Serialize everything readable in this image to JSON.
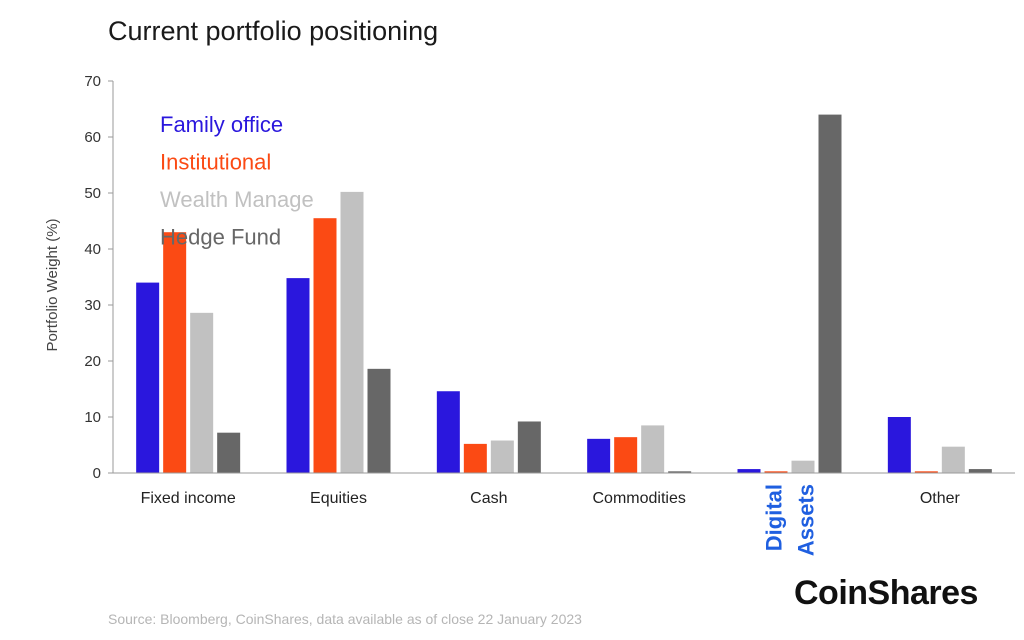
{
  "chart_data": {
    "type": "bar",
    "title": "Current portfolio positioning",
    "ylabel": "Portfolio Weight (%)",
    "xlabel": "",
    "ylim": [
      0,
      70
    ],
    "yticks": [
      0,
      10,
      20,
      30,
      40,
      50,
      60,
      70
    ],
    "categories": [
      "Fixed income",
      "Equities",
      "Cash",
      "Commodities",
      "Digital Assets",
      "Other"
    ],
    "highlight_category": "Digital Assets",
    "highlight_color": "#1f5fe0",
    "legend_position": "top-left",
    "series": [
      {
        "name": "Family office",
        "color": "#2a17dd",
        "values": [
          34,
          34.8,
          14.6,
          6.1,
          0.7,
          10
        ]
      },
      {
        "name": "Institutional",
        "color": "#fb4a14",
        "values": [
          43,
          45.5,
          5.2,
          6.4,
          0.3,
          0.3
        ]
      },
      {
        "name": "Wealth Manage",
        "color": "#c1c1c1",
        "values": [
          28.6,
          50.2,
          5.8,
          8.5,
          2.2,
          4.7
        ]
      },
      {
        "name": "Hedge Fund",
        "color": "#676767",
        "values": [
          7.2,
          18.6,
          9.2,
          0.3,
          64,
          0.7
        ]
      }
    ]
  },
  "footer": {
    "source": "Source: Bloomberg, CoinShares, data available as of close 22 January 2023",
    "brand": "CoinShares"
  }
}
